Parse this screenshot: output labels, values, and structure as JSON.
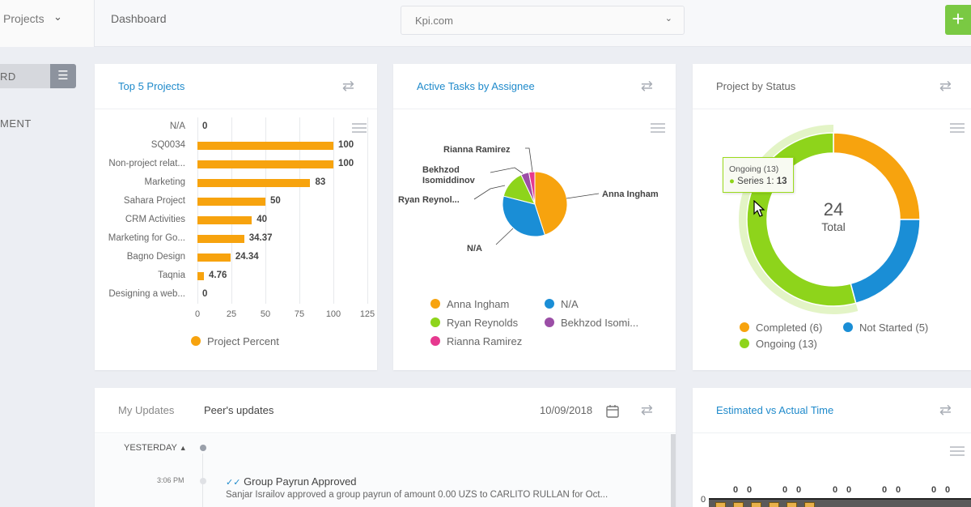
{
  "topbar": {
    "project_selector": "Projects",
    "breadcrumb": "Dashboard",
    "site_selector": "Kpi.com",
    "add_label": "+"
  },
  "sidebar": {
    "active_item": "RD",
    "item2": "MENT"
  },
  "colors": {
    "accent_blue": "#1f8acb",
    "orange": "#f7a30e",
    "blue": "#1a8ed6",
    "green": "#8ed41b",
    "purple": "#9b4ea6",
    "pink": "#e6398f",
    "add_green": "#7ac943"
  },
  "top5": {
    "title": "Top 5 Projects",
    "legend": "Project Percent",
    "refresh_icon": "refresh-icon",
    "menu_icon": "hamburger-menu-icon"
  },
  "tasks": {
    "title": "Active Tasks by Assignee",
    "pie_labels": {
      "anna": "Anna Ingham",
      "na": "N/A",
      "ryan": "Ryan Reynol...",
      "bekhzod_1": "Bekhzod",
      "bekhzod_2": "Isomiddinov",
      "rianna": "Rianna Ramirez"
    },
    "legend": [
      "Anna Ingham",
      "N/A",
      "Ryan Reynolds",
      "Bekhzod Isomi...",
      "Rianna Ramirez"
    ]
  },
  "status": {
    "title": "Project by Status",
    "total_value": "24",
    "total_label": "Total",
    "tooltip_title": "Ongoing (13)",
    "tooltip_series": "Series 1:",
    "tooltip_value": "13",
    "legend": [
      "Completed (6)",
      "Not Started (5)",
      "Ongoing (13)"
    ]
  },
  "updates": {
    "tab_mine": "My Updates",
    "tab_peers": "Peer's updates",
    "date": "10/09/2018",
    "group_label": "YESTERDAY",
    "item_time": "3:06 PM",
    "item_title": "Group Payrun Approved",
    "item_text": "Sanjar Israilov approved a group payrun of amount 0.00 UZS to CARLITO RULLAN for Oct..."
  },
  "estimated": {
    "title": "Estimated vs Actual Time",
    "y_zero": "0",
    "zero_labels": [
      "0",
      "0",
      "0",
      "0",
      "0",
      "0",
      "0",
      "0",
      "0",
      "0"
    ]
  },
  "chart_data": [
    {
      "type": "bar",
      "orientation": "horizontal",
      "title": "Top 5 Projects",
      "categories": [
        "N/A",
        "SQ0034",
        "Non-project relat...",
        "Marketing",
        "Sahara Project",
        "CRM Activities",
        "Marketing for Go...",
        "Bagno Design",
        "Taqnia",
        "Designing a web..."
      ],
      "series": [
        {
          "name": "Project Percent",
          "values": [
            0,
            100,
            100,
            83,
            50,
            40,
            34.37,
            24.34,
            4.76,
            0
          ]
        }
      ],
      "xlim": [
        0,
        125
      ],
      "ticks": [
        "0",
        "25",
        "50",
        "75",
        "100",
        "125"
      ],
      "grid": true,
      "legend": "bottom"
    },
    {
      "type": "pie",
      "title": "Active Tasks by Assignee",
      "categories": [
        "Anna Ingham",
        "N/A",
        "Ryan Reynolds",
        "Bekhzod Isomiddinov",
        "Rianna Ramirez"
      ],
      "values": [
        45,
        34,
        14,
        4,
        3
      ],
      "colors": [
        "#f7a30e",
        "#1a8ed6",
        "#8ed41b",
        "#9b4ea6",
        "#e6398f"
      ],
      "legend": "bottom"
    },
    {
      "type": "pie",
      "variant": "donut",
      "title": "Project by Status",
      "categories": [
        "Completed",
        "Not Started",
        "Ongoing"
      ],
      "values": [
        6,
        5,
        13
      ],
      "colors": [
        "#f7a30e",
        "#1a8ed6",
        "#8ed41b"
      ],
      "legend": "bottom"
    }
  ]
}
